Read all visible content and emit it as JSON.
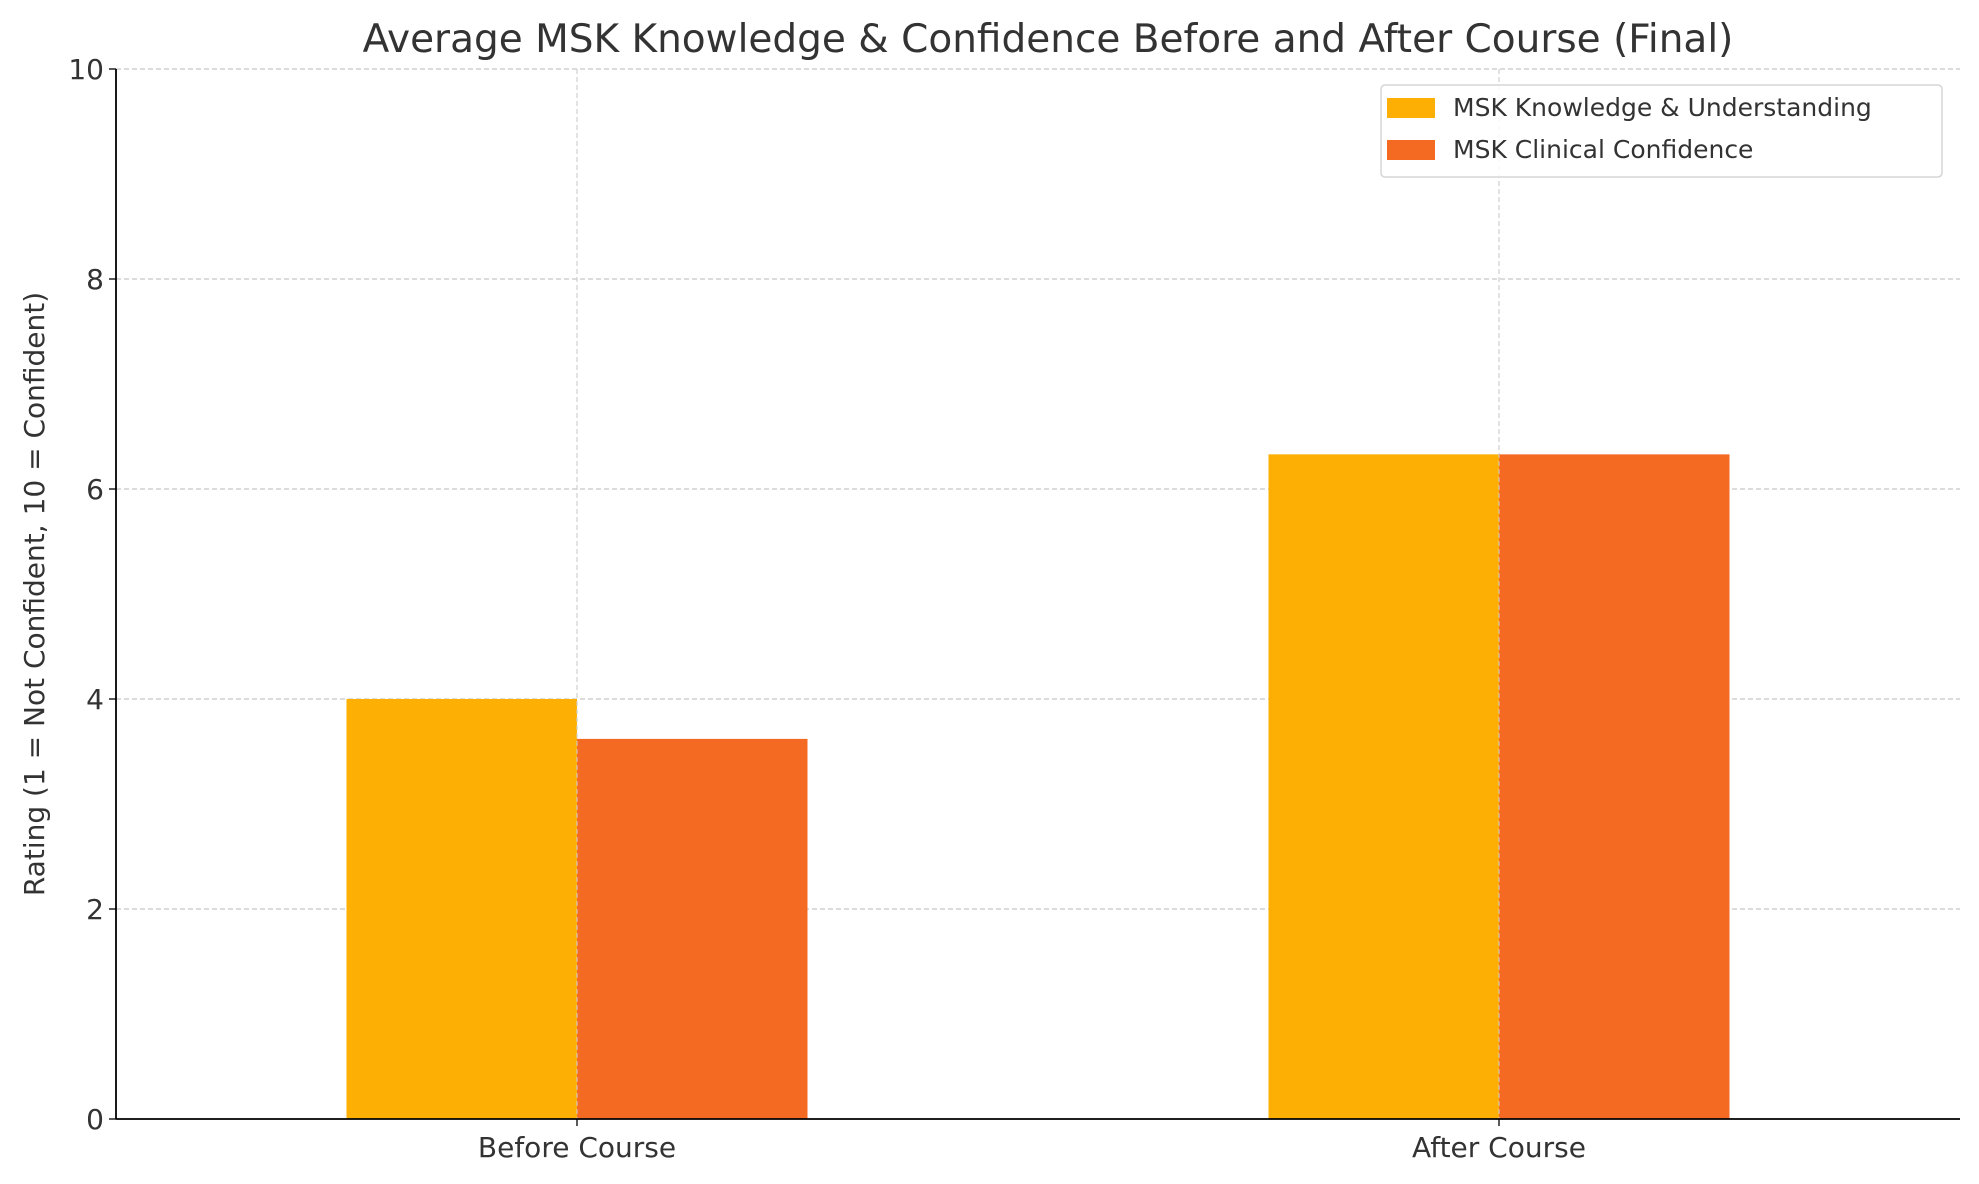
{
  "chart_data": {
    "type": "bar",
    "title": "Average MSK Knowledge & Confidence Before and After Course (Final)",
    "xlabel": "",
    "ylabel": "Rating (1 = Not Confident, 10 = Confident)",
    "categories": [
      "Before Course",
      "After Course"
    ],
    "series": [
      {
        "name": "MSK Knowledge & Understanding",
        "values": [
          4.0,
          6.33
        ],
        "color": "#FDB003"
      },
      {
        "name": "MSK Clinical Confidence",
        "values": [
          3.62,
          6.33
        ],
        "color": "#F46A23"
      }
    ],
    "ylim": [
      0,
      10
    ],
    "yticks": [
      0,
      2,
      4,
      6,
      8,
      10
    ],
    "grid": true,
    "legend": "top-right"
  }
}
